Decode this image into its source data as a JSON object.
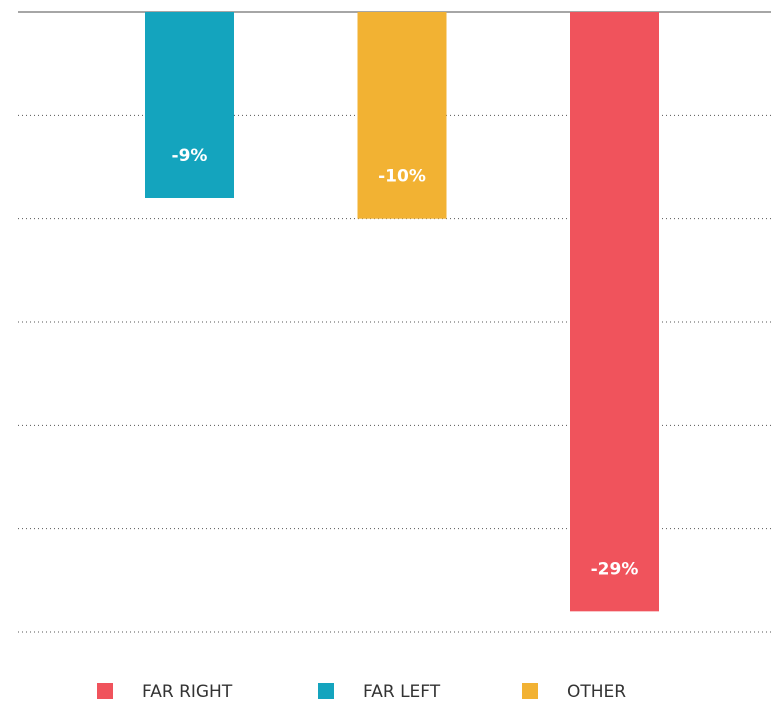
{
  "chart_data": {
    "type": "bar",
    "series": [
      {
        "name": "FAR LEFT",
        "color": "#14a4be",
        "values": [
          -9
        ],
        "value_labels": [
          "-9%"
        ]
      },
      {
        "name": "OTHER",
        "color": "#f2b233",
        "values": [
          -10
        ],
        "value_labels": [
          "-10%"
        ]
      },
      {
        "name": "FAR RIGHT",
        "color": "#f0535c",
        "values": [
          -29
        ],
        "value_labels": [
          "-29%"
        ]
      }
    ],
    "ylim": [
      -30,
      0
    ],
    "yticks": [
      -30,
      -25,
      -20,
      -15,
      -10,
      -5,
      0
    ],
    "grid": true
  }
}
